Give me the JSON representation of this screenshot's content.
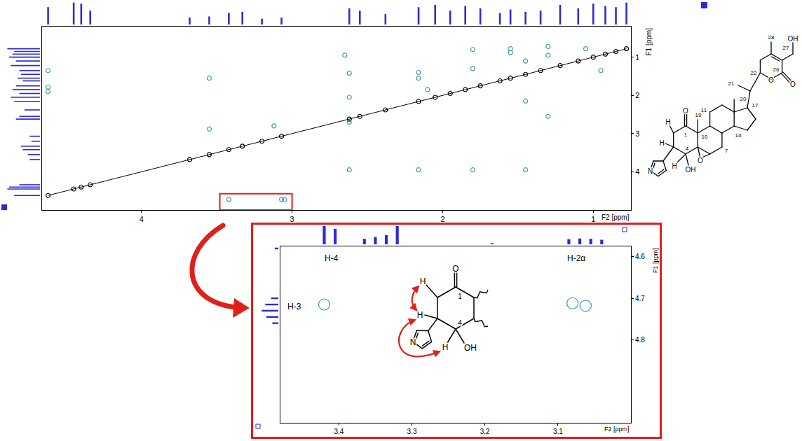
{
  "chart_data": [
    {
      "type": "scatter",
      "x_label": "F2 [ppm]",
      "y_label": "F1 [ppm]",
      "xlim": [
        4.66,
        0.75
      ],
      "xticks": [
        4,
        3,
        2,
        1
      ],
      "ylim": [
        5.0,
        0.2
      ],
      "yticks": [
        1,
        2,
        3,
        4
      ],
      "grid": false,
      "series": [
        {
          "color": "#000000",
          "marker": "circle-open",
          "line_style": "solid",
          "x": [
            4.62,
            4.45,
            4.4,
            4.34,
            3.68,
            3.55,
            3.42,
            3.33,
            3.2,
            3.07,
            2.62,
            2.55,
            2.38,
            2.16,
            2.05,
            1.95,
            1.85,
            1.75,
            1.62,
            1.55,
            1.45,
            1.35,
            1.22,
            1.1,
            1.0,
            0.92,
            0.85,
            0.78
          ],
          "y": [
            4.62,
            4.45,
            4.4,
            4.34,
            3.68,
            3.55,
            3.42,
            3.33,
            3.2,
            3.07,
            2.62,
            2.55,
            2.38,
            2.16,
            2.05,
            1.95,
            1.85,
            1.75,
            1.62,
            1.55,
            1.45,
            1.35,
            1.22,
            1.1,
            1.0,
            0.92,
            0.85,
            0.78
          ]
        },
        {
          "color": "#3a9fa3",
          "marker": "circle-open",
          "x": [
            4.62,
            4.62,
            4.62,
            3.55,
            3.55,
            3.12,
            2.65,
            2.62,
            2.62,
            2.62,
            2.62,
            2.16,
            2.16,
            2.1,
            2.16,
            1.8,
            1.8,
            1.8,
            1.55,
            1.55,
            1.45,
            1.45,
            1.45,
            1.3,
            1.3,
            1.3,
            1.05,
            0.95,
            3.42,
            3.07,
            3.05
          ],
          "y": [
            1.35,
            1.78,
            1.9,
            1.55,
            2.88,
            2.8,
            0.95,
            1.42,
            2.05,
            2.7,
            3.95,
            1.4,
            1.55,
            1.85,
            3.95,
            0.8,
            1.3,
            3.95,
            0.78,
            0.88,
            1.1,
            2.15,
            3.95,
            0.72,
            0.95,
            2.55,
            0.78,
            1.35,
            4.72,
            4.72,
            4.73
          ]
        }
      ],
      "projection": {
        "type": "bar",
        "color": "#2b2bd6",
        "tick_labels": false,
        "ylim": [
          0,
          1
        ],
        "x": [
          4.62,
          4.45,
          4.4,
          4.34,
          3.68,
          3.55,
          3.42,
          3.33,
          3.2,
          3.07,
          2.62,
          2.55,
          2.38,
          2.16,
          2.05,
          1.95,
          1.85,
          1.75,
          1.62,
          1.55,
          1.45,
          1.35,
          1.22,
          1.1,
          1.0,
          0.92,
          0.85,
          0.78
        ],
        "values": [
          0.75,
          0.95,
          0.9,
          0.6,
          0.3,
          0.35,
          0.5,
          0.55,
          0.25,
          0.3,
          0.7,
          0.6,
          0.45,
          0.75,
          0.85,
          0.6,
          0.8,
          0.7,
          0.5,
          0.65,
          0.55,
          0.6,
          0.85,
          0.7,
          0.9,
          0.8,
          0.75,
          0.95
        ]
      }
    },
    {
      "type": "scatter",
      "x_label": "F2 [ppm]",
      "y_label": "F1 [ppm]",
      "xlim": [
        3.48,
        3.0
      ],
      "xticks": [
        3.4,
        3.3,
        3.2,
        3.1
      ],
      "ylim": [
        5.0,
        4.575
      ],
      "yticks": [
        4.6,
        4.7,
        4.8
      ],
      "grid": false,
      "series": [
        {
          "color": "#3a9fa3",
          "marker": "circle-open",
          "x": [
            3.42,
            3.08,
            3.062
          ],
          "y": [
            4.715,
            4.712,
            4.718
          ]
        }
      ],
      "projection_f2": {
        "type": "bar",
        "color": "#2b2bd6",
        "tick_labels": false,
        "ylim": [
          0,
          1
        ],
        "x": [
          3.42,
          3.405,
          3.365,
          3.35,
          3.335,
          3.32,
          3.19,
          3.085,
          3.07,
          3.055,
          3.04
        ],
        "values": [
          1.0,
          0.85,
          0.3,
          0.4,
          0.5,
          1.0,
          0.06,
          0.28,
          0.32,
          0.3,
          0.25
        ]
      },
      "projection_f1": {
        "type": "bar",
        "color": "#2b2bd6",
        "tick_labels": false,
        "ylim": [
          0,
          1
        ],
        "x": [
          4.58,
          4.7,
          4.715,
          4.73,
          4.745,
          4.76
        ],
        "values": [
          0.15,
          0.3,
          0.55,
          0.7,
          0.5,
          0.25
        ]
      },
      "annotations": [
        {
          "text": "H-4",
          "x": 3.41
        },
        {
          "text": "H-2α",
          "x": 3.075
        },
        {
          "text": "H-3",
          "y": 4.72
        }
      ]
    }
  ],
  "structure": {
    "labels": {
      "c28": "28",
      "c27": "27",
      "oh27": "OH",
      "c21": "21",
      "c20": "20",
      "c22": "22",
      "c26": "26",
      "oring": "O",
      "o26": "O",
      "c17": "17",
      "c14": "14",
      "c11": "11",
      "c19": "19",
      "o1": "O",
      "c1": "1",
      "c10": "10",
      "c7": "7",
      "c4": "4",
      "h2": "H",
      "h3": "H",
      "h4": "H",
      "oh4": "OH",
      "oep": "O",
      "n3": "N"
    }
  },
  "inset_structure": {
    "labels": {
      "o1": "O",
      "c1": "1",
      "h2": "H",
      "h3": "H",
      "c4": "4",
      "h4": "H",
      "oh4": "OH",
      "n3": "N"
    }
  }
}
